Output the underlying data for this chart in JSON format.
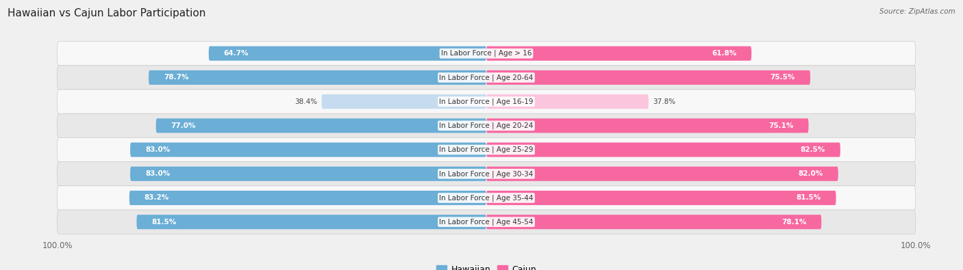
{
  "title": "Hawaiian vs Cajun Labor Participation",
  "source": "Source: ZipAtlas.com",
  "categories": [
    "In Labor Force | Age > 16",
    "In Labor Force | Age 20-64",
    "In Labor Force | Age 16-19",
    "In Labor Force | Age 20-24",
    "In Labor Force | Age 25-29",
    "In Labor Force | Age 30-34",
    "In Labor Force | Age 35-44",
    "In Labor Force | Age 45-54"
  ],
  "hawaiian": [
    64.7,
    78.7,
    38.4,
    77.0,
    83.0,
    83.0,
    83.2,
    81.5
  ],
  "cajun": [
    61.8,
    75.5,
    37.8,
    75.1,
    82.5,
    82.0,
    81.5,
    78.1
  ],
  "hawaiian_color": "#6baed6",
  "cajun_color": "#f768a1",
  "hawaiian_color_light": "#c6dbef",
  "cajun_color_light": "#fcc5de",
  "bg_color": "#f0f0f0",
  "row_bg_light": "#f8f8f8",
  "row_bg_dark": "#e8e8e8",
  "max_val": 100.0,
  "label_fontsize": 7.5,
  "title_fontsize": 11,
  "value_fontsize": 7.5,
  "light_threshold": 50.0
}
